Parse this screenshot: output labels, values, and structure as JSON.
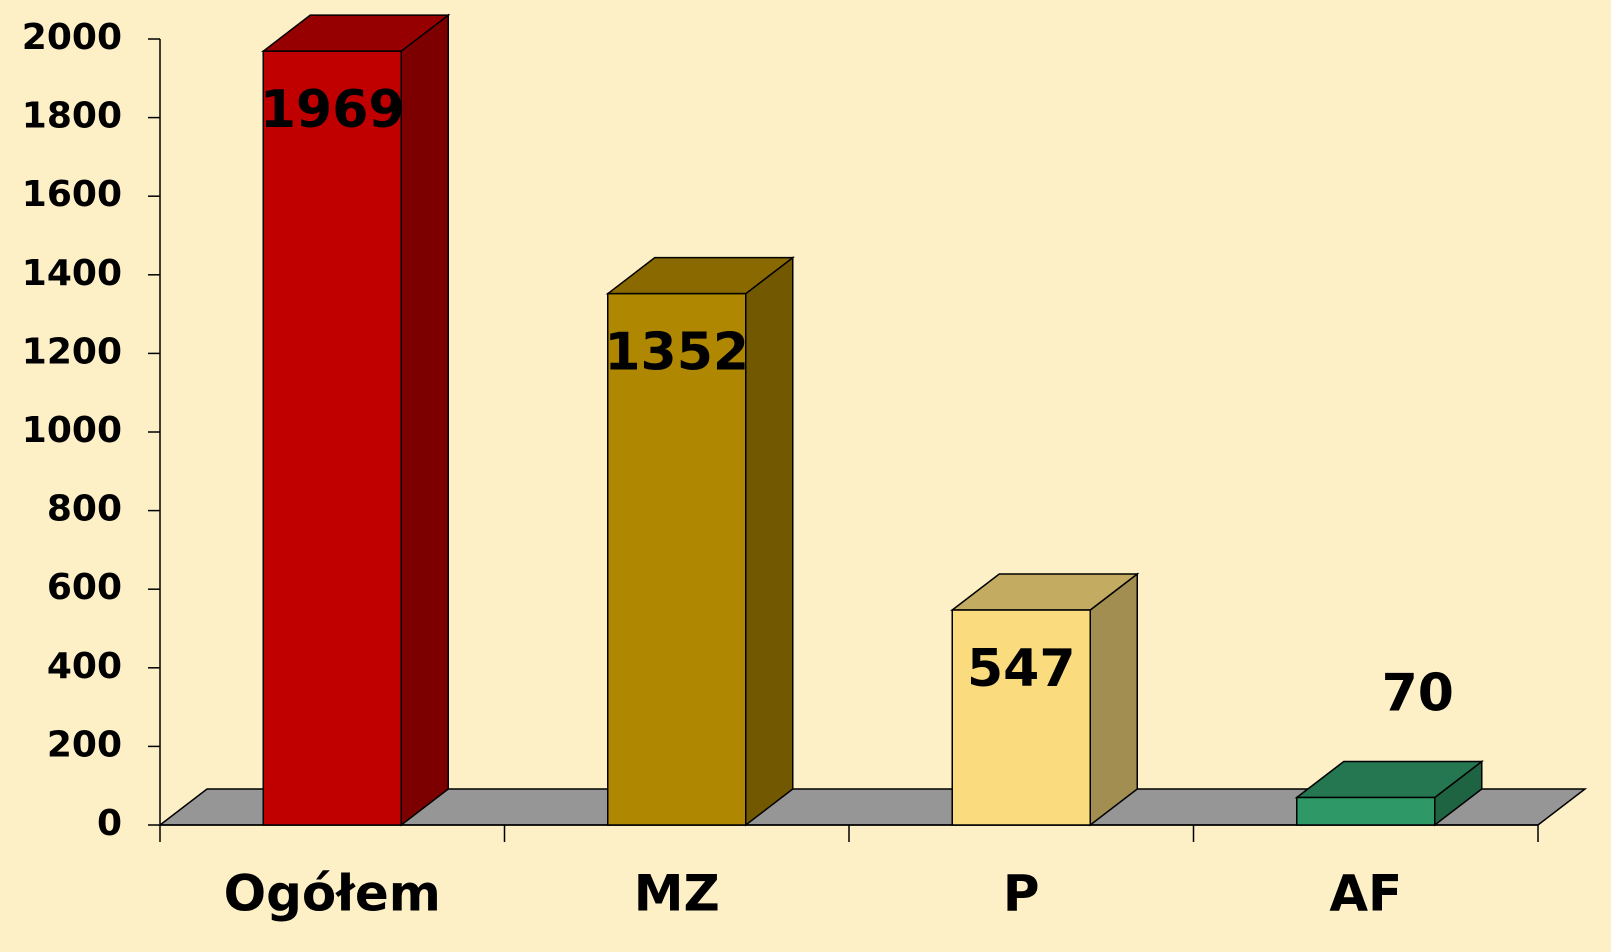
{
  "chart_data": {
    "type": "bar3d",
    "categories": [
      "Ogółem",
      "MZ",
      "P",
      "AF"
    ],
    "values": [
      1969,
      1352,
      547,
      70
    ],
    "colors": [
      "#c00000",
      "#b08700",
      "#fadb7d",
      "#2e9966"
    ],
    "ylim": [
      0,
      2000
    ],
    "yticks": [
      0,
      200,
      400,
      600,
      800,
      1000,
      1200,
      1400,
      1600,
      1800,
      2000
    ],
    "floor_color": "#969696"
  }
}
